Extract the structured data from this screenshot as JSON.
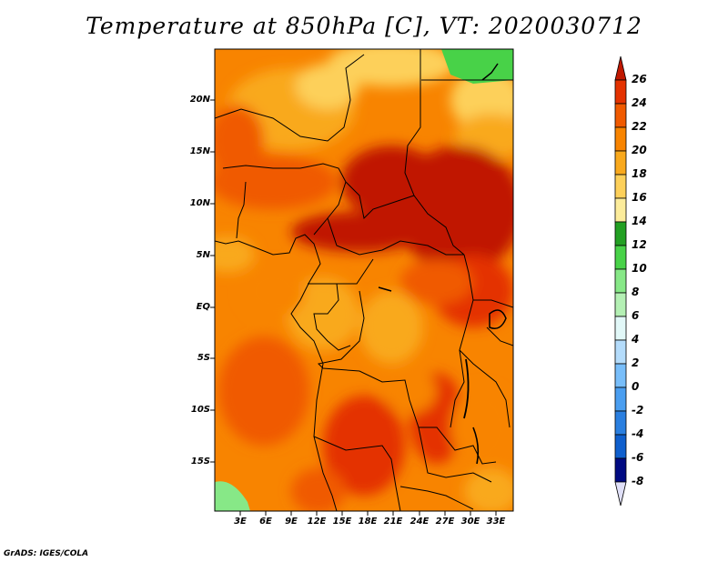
{
  "title": "Temperature at 850hPa [C], VT: 2020030712",
  "credit": "GrADS: IGES/COLA",
  "map": {
    "type": "filled-contour-map",
    "variable": "Temperature at 850hPa",
    "units": "C",
    "valid_time": "2020030712",
    "lon_labels": [
      "3E",
      "6E",
      "9E",
      "12E",
      "15E",
      "18E",
      "21E",
      "24E",
      "27E",
      "30E",
      "33E"
    ],
    "lat_labels": [
      "20N",
      "15N",
      "10N",
      "5N",
      "EQ",
      "5S",
      "10S",
      "15S"
    ],
    "region": "Central Africa"
  },
  "colorbar": {
    "labels": [
      "26",
      "24",
      "22",
      "20",
      "18",
      "16",
      "14",
      "12",
      "10",
      "8",
      "6",
      "4",
      "2",
      "0",
      "-2",
      "-4",
      "-6",
      "-8"
    ],
    "colors": [
      "#c01800",
      "#e43200",
      "#f05a00",
      "#f88400",
      "#f9a91d",
      "#fdd05a",
      "#fcec9b",
      "#23a023",
      "#48d248",
      "#87e887",
      "#b4f0b4",
      "#e2f8f8",
      "#b4dcfb",
      "#78befa",
      "#4a9ef0",
      "#2a7fe0",
      "#0f5fcd",
      "#003ea9",
      "#000a82"
    ],
    "top_color": "#c01800",
    "bottom_color": "#e0e0f8"
  }
}
